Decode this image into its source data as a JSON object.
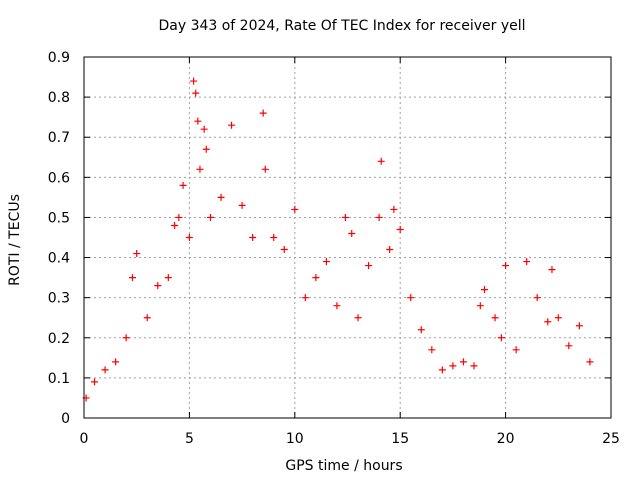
{
  "chart_data": {
    "type": "scatter",
    "title": "Day 343 of 2024, Rate Of TEC Index for receiver yell",
    "xlabel": "GPS time / hours",
    "ylabel": "ROTI / TECUs",
    "xlim": [
      0,
      25
    ],
    "ylim": [
      0,
      0.9
    ],
    "xticks": [
      0,
      5,
      10,
      15,
      20,
      25
    ],
    "xtick_labels": [
      "0",
      "5",
      "10",
      "15",
      "20",
      "25"
    ],
    "yticks": [
      0,
      0.1,
      0.2,
      0.3,
      0.4,
      0.5,
      0.6,
      0.7,
      0.8,
      0.9
    ],
    "ytick_labels": [
      "0",
      "0.1",
      "0.2",
      "0.3",
      "0.4",
      "0.5",
      "0.6",
      "0.7",
      "0.8",
      "0.9"
    ],
    "grid": true,
    "marker": "+",
    "marker_color": "#ff0000",
    "series": [
      {
        "name": "ROTI",
        "x": [
          0.1,
          0.5,
          1.0,
          1.5,
          2.0,
          2.3,
          2.5,
          3.0,
          3.5,
          4.0,
          4.3,
          4.5,
          4.7,
          5.0,
          5.2,
          5.3,
          5.4,
          5.5,
          5.7,
          5.8,
          6.0,
          6.5,
          7.0,
          7.5,
          8.0,
          8.5,
          8.6,
          9.0,
          9.5,
          10.0,
          10.5,
          11.0,
          11.5,
          12.0,
          12.4,
          12.7,
          13.0,
          13.5,
          14.0,
          14.1,
          14.5,
          14.7,
          15.0,
          15.5,
          16.0,
          16.5,
          17.0,
          17.5,
          18.0,
          18.5,
          18.8,
          19.0,
          19.5,
          19.8,
          20.0,
          20.5,
          21.0,
          21.5,
          22.0,
          22.2,
          22.5,
          23.0,
          23.5,
          24.0
        ],
        "y": [
          0.05,
          0.09,
          0.12,
          0.14,
          0.2,
          0.35,
          0.41,
          0.25,
          0.33,
          0.35,
          0.48,
          0.5,
          0.58,
          0.45,
          0.84,
          0.81,
          0.74,
          0.62,
          0.72,
          0.67,
          0.5,
          0.55,
          0.73,
          0.53,
          0.45,
          0.76,
          0.62,
          0.45,
          0.42,
          0.52,
          0.3,
          0.35,
          0.39,
          0.28,
          0.5,
          0.46,
          0.25,
          0.38,
          0.5,
          0.64,
          0.42,
          0.52,
          0.47,
          0.3,
          0.22,
          0.17,
          0.12,
          0.13,
          0.14,
          0.13,
          0.28,
          0.32,
          0.25,
          0.2,
          0.38,
          0.17,
          0.39,
          0.3,
          0.24,
          0.37,
          0.25,
          0.18,
          0.23,
          0.14
        ]
      }
    ]
  }
}
